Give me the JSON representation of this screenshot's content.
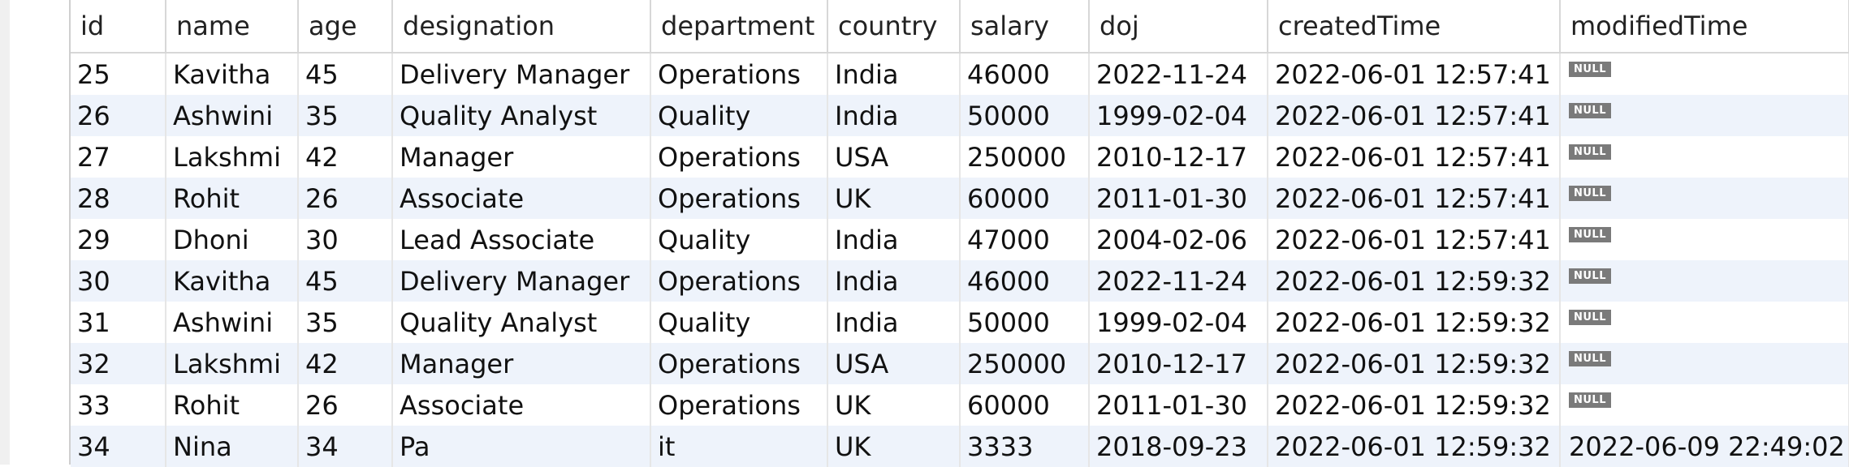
{
  "result_grid": {
    "columns": [
      "id",
      "name",
      "age",
      "designation",
      "department",
      "country",
      "salary",
      "doj",
      "createdTime",
      "modifiedTime"
    ],
    "null_label": "NULL",
    "rows": [
      [
        "25",
        "Kavitha",
        "45",
        "Delivery Manager",
        "Operations",
        "India",
        "46000",
        "2022-11-24",
        "2022-06-01 12:57:41",
        null
      ],
      [
        "26",
        "Ashwini",
        "35",
        "Quality Analyst",
        "Quality",
        "India",
        "50000",
        "1999-02-04",
        "2022-06-01 12:57:41",
        null
      ],
      [
        "27",
        "Lakshmi",
        "42",
        "Manager",
        "Operations",
        "USA",
        "250000",
        "2010-12-17",
        "2022-06-01 12:57:41",
        null
      ],
      [
        "28",
        "Rohit",
        "26",
        "Associate",
        "Operations",
        "UK",
        "60000",
        "2011-01-30",
        "2022-06-01 12:57:41",
        null
      ],
      [
        "29",
        "Dhoni",
        "30",
        "Lead Associate",
        "Quality",
        "India",
        "47000",
        "2004-02-06",
        "2022-06-01 12:57:41",
        null
      ],
      [
        "30",
        "Kavitha",
        "45",
        "Delivery Manager",
        "Operations",
        "India",
        "46000",
        "2022-11-24",
        "2022-06-01 12:59:32",
        null
      ],
      [
        "31",
        "Ashwini",
        "35",
        "Quality Analyst",
        "Quality",
        "India",
        "50000",
        "1999-02-04",
        "2022-06-01 12:59:32",
        null
      ],
      [
        "32",
        "Lakshmi",
        "42",
        "Manager",
        "Operations",
        "USA",
        "250000",
        "2010-12-17",
        "2022-06-01 12:59:32",
        null
      ],
      [
        "33",
        "Rohit",
        "26",
        "Associate",
        "Operations",
        "UK",
        "60000",
        "2011-01-30",
        "2022-06-01 12:59:32",
        null
      ],
      [
        "34",
        "Nina",
        "34",
        "Pa",
        "it",
        "UK",
        "3333",
        "2018-09-23",
        "2022-06-01 12:59:32",
        "2022-06-09 22:49:02"
      ]
    ]
  }
}
